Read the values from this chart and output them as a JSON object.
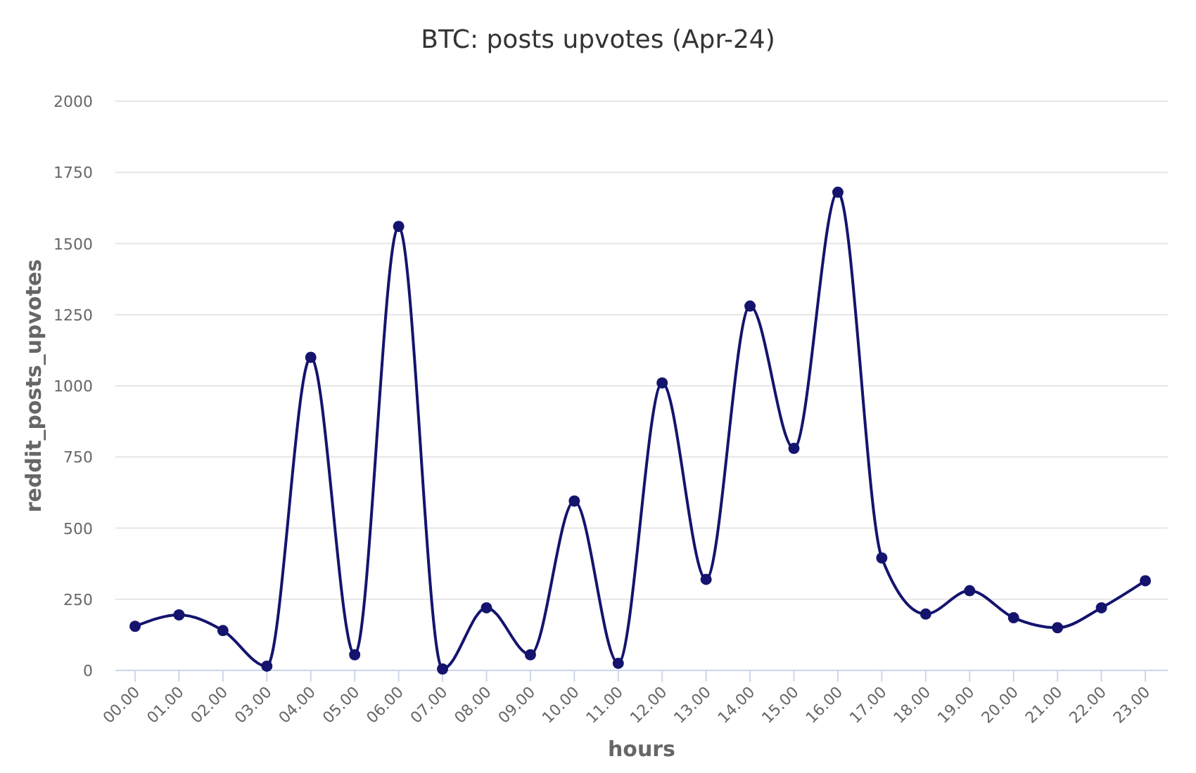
{
  "chart_data": {
    "type": "line",
    "title": "BTC: posts upvotes (Apr-24)",
    "xlabel": "hours",
    "ylabel": "reddit_posts_upvotes",
    "categories": [
      "00.00",
      "01.00",
      "02.00",
      "03.00",
      "04.00",
      "05.00",
      "06.00",
      "07.00",
      "08.00",
      "09.00",
      "10.00",
      "11.00",
      "12.00",
      "13.00",
      "14.00",
      "15.00",
      "16.00",
      "17.00",
      "18.00",
      "19.00",
      "20.00",
      "21.00",
      "22.00",
      "23.00"
    ],
    "series": [
      {
        "color": "#14146e",
        "values": [
          155,
          195,
          140,
          15,
          1100,
          55,
          1560,
          5,
          220,
          55,
          595,
          25,
          1010,
          320,
          1280,
          780,
          1680,
          395,
          198,
          280,
          185,
          150,
          220,
          315
        ]
      }
    ],
    "ylim": [
      0,
      2000
    ],
    "yticks": [
      0,
      250,
      500,
      750,
      1000,
      1250,
      1500,
      1750,
      2000
    ],
    "grid": "y",
    "marker": "circle",
    "line_style": "solid"
  }
}
